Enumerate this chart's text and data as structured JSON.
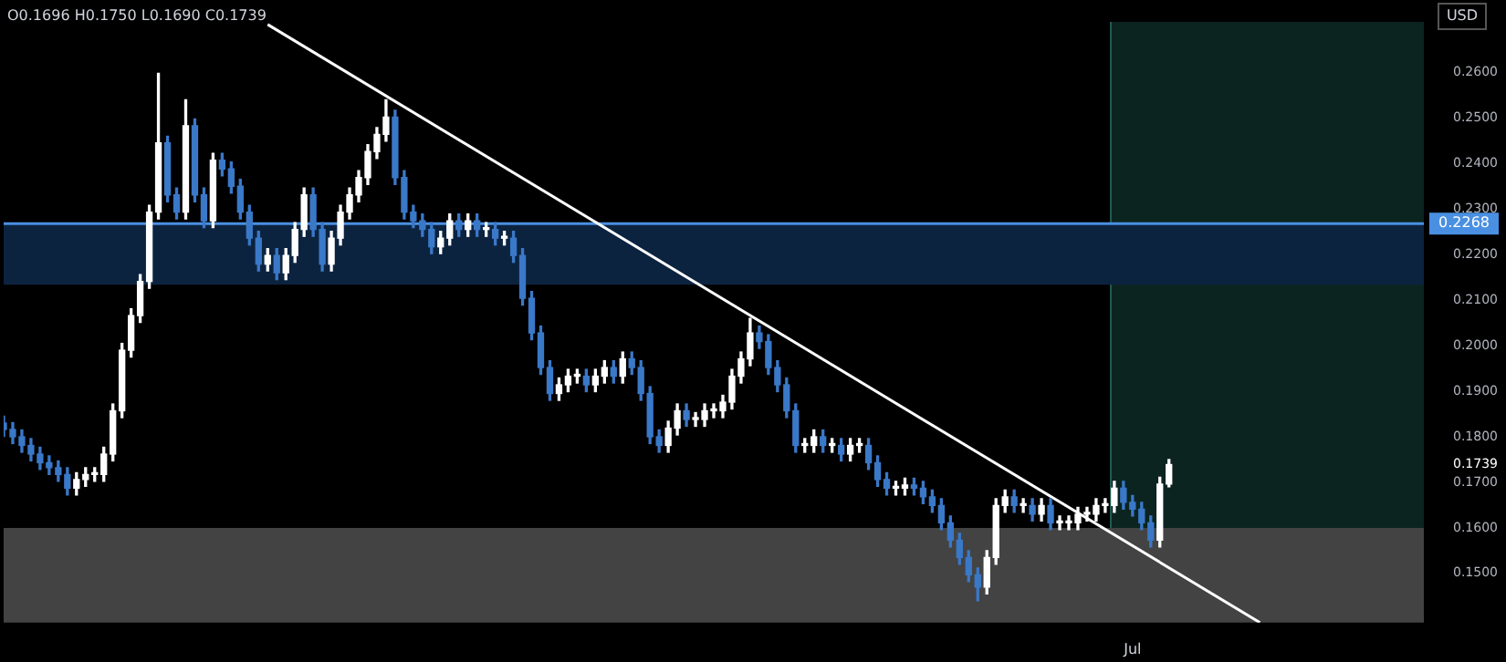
{
  "chart_data": {
    "type": "candlestick",
    "ylabel": "USD",
    "annotations": [
      "O0.1696 H0.1750 L0.1690 C0.1739"
    ],
    "categories": [
      null,
      null,
      null,
      null,
      null,
      null,
      null,
      null,
      null,
      null,
      null,
      null,
      null,
      null,
      null,
      null,
      null,
      null,
      null,
      null,
      null,
      null,
      null,
      null,
      null,
      null,
      null,
      null,
      null,
      null,
      null,
      null,
      null,
      null,
      null,
      null,
      null,
      null,
      null,
      null,
      null,
      null,
      null,
      null,
      null,
      null,
      null,
      null,
      null,
      null,
      null,
      null,
      null,
      null,
      null,
      null,
      null,
      null,
      null,
      null,
      null,
      null,
      null,
      null,
      null,
      null,
      null,
      null,
      null,
      null,
      null,
      null,
      null,
      null,
      null,
      null,
      null,
      null,
      null,
      null,
      null,
      null,
      null,
      null,
      null,
      null,
      null,
      null,
      null,
      null,
      null,
      null,
      null,
      null,
      null,
      null,
      null,
      null,
      null,
      null,
      null,
      null,
      null,
      null,
      null,
      null,
      null,
      null,
      null,
      null,
      null,
      null,
      null,
      null,
      null,
      null,
      null,
      null,
      null,
      null,
      null,
      null,
      null,
      null,
      "Jul",
      null,
      null,
      null,
      null,
      null,
      null,
      null,
      null,
      null,
      null,
      null,
      null,
      null,
      null,
      null,
      null,
      null,
      null,
      null,
      null,
      null,
      null,
      null,
      null,
      null,
      null,
      null,
      null,
      null,
      null,
      null,
      null
    ],
    "ohlc": [
      [
        0.183,
        0.1845,
        0.1801,
        0.1816
      ],
      [
        0.1816,
        0.1831,
        0.1785,
        0.18
      ],
      [
        0.18,
        0.1815,
        0.1766,
        0.1781
      ],
      [
        0.1781,
        0.1796,
        0.1747,
        0.1762
      ],
      [
        0.1762,
        0.1777,
        0.1728,
        0.1743
      ],
      [
        0.1743,
        0.1758,
        0.1717,
        0.1732
      ],
      [
        0.1732,
        0.1747,
        0.1702,
        0.1717
      ],
      [
        0.1717,
        0.1732,
        0.1672,
        0.1687
      ],
      [
        0.1687,
        0.1721,
        0.1672,
        0.1706
      ],
      [
        0.1706,
        0.1732,
        0.1691,
        0.1717
      ],
      [
        0.1717,
        0.1732,
        0.1702,
        0.1717
      ],
      [
        0.1717,
        0.1777,
        0.1702,
        0.1762
      ],
      [
        0.1762,
        0.1872,
        0.1747,
        0.1857
      ],
      [
        0.1857,
        0.2005,
        0.1842,
        0.199
      ],
      [
        0.199,
        0.2081,
        0.1975,
        0.2066
      ],
      [
        0.2066,
        0.2156,
        0.2051,
        0.2141
      ],
      [
        0.2141,
        0.2308,
        0.2126,
        0.2293
      ],
      [
        0.2293,
        0.2598,
        0.2278,
        0.2445
      ],
      [
        0.2445,
        0.246,
        0.2316,
        0.2331
      ],
      [
        0.2331,
        0.2346,
        0.2278,
        0.2293
      ],
      [
        0.2293,
        0.254,
        0.2278,
        0.2483
      ],
      [
        0.2483,
        0.2498,
        0.2316,
        0.2331
      ],
      [
        0.2331,
        0.2346,
        0.2259,
        0.2274
      ],
      [
        0.2274,
        0.2422,
        0.2259,
        0.2407
      ],
      [
        0.2407,
        0.2422,
        0.2373,
        0.2388
      ],
      [
        0.2388,
        0.2403,
        0.2335,
        0.235
      ],
      [
        0.235,
        0.2365,
        0.2278,
        0.2293
      ],
      [
        0.2293,
        0.2308,
        0.2221,
        0.2236
      ],
      [
        0.2236,
        0.2251,
        0.2164,
        0.2179
      ],
      [
        0.2179,
        0.2213,
        0.2164,
        0.2198
      ],
      [
        0.2198,
        0.2213,
        0.2145,
        0.216
      ],
      [
        0.216,
        0.2213,
        0.2145,
        0.2198
      ],
      [
        0.2198,
        0.227,
        0.2183,
        0.2255
      ],
      [
        0.2255,
        0.2346,
        0.224,
        0.2331
      ],
      [
        0.2331,
        0.2346,
        0.224,
        0.2255
      ],
      [
        0.2255,
        0.227,
        0.2164,
        0.2179
      ],
      [
        0.2179,
        0.2251,
        0.2164,
        0.2236
      ],
      [
        0.2236,
        0.2308,
        0.2221,
        0.2293
      ],
      [
        0.2293,
        0.2346,
        0.2278,
        0.2331
      ],
      [
        0.2331,
        0.2384,
        0.2316,
        0.2369
      ],
      [
        0.2369,
        0.2441,
        0.2354,
        0.2426
      ],
      [
        0.2426,
        0.2479,
        0.2411,
        0.2464
      ],
      [
        0.2464,
        0.254,
        0.2449,
        0.2502
      ],
      [
        0.2502,
        0.2517,
        0.2354,
        0.2369
      ],
      [
        0.2369,
        0.2384,
        0.2278,
        0.2293
      ],
      [
        0.2293,
        0.2308,
        0.2259,
        0.2274
      ],
      [
        0.2274,
        0.2289,
        0.224,
        0.2255
      ],
      [
        0.2255,
        0.227,
        0.2202,
        0.2217
      ],
      [
        0.2217,
        0.2251,
        0.2202,
        0.2236
      ],
      [
        0.2236,
        0.2289,
        0.2221,
        0.2274
      ],
      [
        0.2274,
        0.2289,
        0.224,
        0.2255
      ],
      [
        0.2255,
        0.2289,
        0.224,
        0.2274
      ],
      [
        0.2274,
        0.2289,
        0.224,
        0.2255
      ],
      [
        0.2255,
        0.227,
        0.224,
        0.2255
      ],
      [
        0.2255,
        0.227,
        0.2221,
        0.2236
      ],
      [
        0.2236,
        0.2251,
        0.2221,
        0.2236
      ],
      [
        0.2236,
        0.2251,
        0.2183,
        0.2198
      ],
      [
        0.2198,
        0.2213,
        0.2089,
        0.2104
      ],
      [
        0.2104,
        0.2119,
        0.2013,
        0.2028
      ],
      [
        0.2028,
        0.2043,
        0.1937,
        0.1952
      ],
      [
        0.1952,
        0.1967,
        0.188,
        0.1895
      ],
      [
        0.1895,
        0.1929,
        0.188,
        0.1914
      ],
      [
        0.1914,
        0.1948,
        0.1899,
        0.1933
      ],
      [
        0.1933,
        0.1948,
        0.1918,
        0.1933
      ],
      [
        0.1933,
        0.1948,
        0.1899,
        0.1914
      ],
      [
        0.1914,
        0.1948,
        0.1899,
        0.1933
      ],
      [
        0.1933,
        0.1967,
        0.1918,
        0.1952
      ],
      [
        0.1952,
        0.1967,
        0.1918,
        0.1933
      ],
      [
        0.1933,
        0.1986,
        0.1918,
        0.1971
      ],
      [
        0.1971,
        0.1986,
        0.1937,
        0.1952
      ],
      [
        0.1952,
        0.1967,
        0.188,
        0.1895
      ],
      [
        0.1895,
        0.191,
        0.1785,
        0.18
      ],
      [
        0.18,
        0.1815,
        0.1766,
        0.1781
      ],
      [
        0.1781,
        0.1834,
        0.1766,
        0.1819
      ],
      [
        0.1819,
        0.1872,
        0.1804,
        0.1857
      ],
      [
        0.1857,
        0.1872,
        0.1823,
        0.1838
      ],
      [
        0.1838,
        0.1853,
        0.1823,
        0.1838
      ],
      [
        0.1838,
        0.1872,
        0.1823,
        0.1857
      ],
      [
        0.1857,
        0.1872,
        0.1842,
        0.1857
      ],
      [
        0.1857,
        0.1891,
        0.1842,
        0.1876
      ],
      [
        0.1876,
        0.1948,
        0.1861,
        0.1933
      ],
      [
        0.1933,
        0.1986,
        0.1918,
        0.1971
      ],
      [
        0.1971,
        0.206,
        0.1956,
        0.2028
      ],
      [
        0.2028,
        0.2043,
        0.1994,
        0.2009
      ],
      [
        0.2009,
        0.2024,
        0.1937,
        0.1952
      ],
      [
        0.1952,
        0.1967,
        0.1899,
        0.1914
      ],
      [
        0.1914,
        0.1929,
        0.1842,
        0.1857
      ],
      [
        0.1857,
        0.1872,
        0.1766,
        0.1781
      ],
      [
        0.1781,
        0.1796,
        0.1766,
        0.1781
      ],
      [
        0.1781,
        0.1815,
        0.1766,
        0.18
      ],
      [
        0.18,
        0.1815,
        0.1766,
        0.1781
      ],
      [
        0.1781,
        0.1796,
        0.1766,
        0.1781
      ],
      [
        0.1781,
        0.1796,
        0.1747,
        0.1762
      ],
      [
        0.1762,
        0.1796,
        0.1747,
        0.1781
      ],
      [
        0.1781,
        0.1796,
        0.1766,
        0.1781
      ],
      [
        0.1781,
        0.1796,
        0.1728,
        0.1743
      ],
      [
        0.1743,
        0.1758,
        0.1691,
        0.1706
      ],
      [
        0.1706,
        0.1721,
        0.1672,
        0.1687
      ],
      [
        0.1687,
        0.1702,
        0.1672,
        0.1687
      ],
      [
        0.1687,
        0.1709,
        0.1672,
        0.1694
      ],
      [
        0.1694,
        0.1709,
        0.1672,
        0.1687
      ],
      [
        0.1687,
        0.1702,
        0.1653,
        0.1668
      ],
      [
        0.1668,
        0.1683,
        0.1634,
        0.1649
      ],
      [
        0.1649,
        0.1664,
        0.1596,
        0.1611
      ],
      [
        0.1611,
        0.1626,
        0.1558,
        0.1573
      ],
      [
        0.1573,
        0.1588,
        0.152,
        0.1535
      ],
      [
        0.1535,
        0.155,
        0.1482,
        0.1497
      ],
      [
        0.1497,
        0.1512,
        0.144,
        0.147
      ],
      [
        0.147,
        0.155,
        0.1455,
        0.1535
      ],
      [
        0.1535,
        0.1664,
        0.152,
        0.1649
      ],
      [
        0.1649,
        0.1683,
        0.1634,
        0.1668
      ],
      [
        0.1668,
        0.1683,
        0.1634,
        0.1649
      ],
      [
        0.1649,
        0.1664,
        0.1634,
        0.1649
      ],
      [
        0.1649,
        0.1664,
        0.1615,
        0.163
      ],
      [
        0.163,
        0.1664,
        0.1615,
        0.1649
      ],
      [
        0.1649,
        0.1664,
        0.1596,
        0.1611
      ],
      [
        0.1611,
        0.1626,
        0.1596,
        0.1611
      ],
      [
        0.1611,
        0.1626,
        0.1596,
        0.1611
      ],
      [
        0.1611,
        0.1645,
        0.1596,
        0.163
      ],
      [
        0.163,
        0.1645,
        0.1615,
        0.163
      ],
      [
        0.163,
        0.1664,
        0.1615,
        0.1649
      ],
      [
        0.1649,
        0.1664,
        0.1634,
        0.1649
      ],
      [
        0.1649,
        0.1702,
        0.1634,
        0.1687
      ],
      [
        0.1687,
        0.1702,
        0.1641,
        0.1656
      ],
      [
        0.1656,
        0.1671,
        0.1626,
        0.1641
      ],
      [
        0.1641,
        0.1656,
        0.1596,
        0.1611
      ],
      [
        0.1611,
        0.1626,
        0.1558,
        0.1573
      ],
      [
        0.1573,
        0.1711,
        0.1558,
        0.1696
      ],
      [
        0.1696,
        0.175,
        0.169,
        0.1739
      ],
      null,
      null,
      null,
      null,
      null,
      null,
      null,
      null,
      null,
      null,
      null,
      null,
      null,
      null,
      null,
      null,
      null,
      null,
      null,
      null,
      null,
      null,
      null,
      null,
      null,
      null,
      null,
      null
    ],
    "colors": [
      "#3a78c8",
      "#3a78c8",
      "#3a78c8",
      "#3a78c8",
      "#3a78c8",
      "#3a78c8",
      "#3a78c8",
      "#3a78c8",
      "#ffffff",
      "#ffffff",
      "#ffffff",
      "#ffffff",
      "#ffffff",
      "#ffffff",
      "#ffffff",
      "#ffffff",
      "#ffffff",
      "#ffffff",
      "#3a78c8",
      "#3a78c8",
      "#ffffff",
      "#3a78c8",
      "#3a78c8",
      "#ffffff",
      "#3a78c8",
      "#3a78c8",
      "#3a78c8",
      "#3a78c8",
      "#3a78c8",
      "#ffffff",
      "#3a78c8",
      "#ffffff",
      "#ffffff",
      "#ffffff",
      "#3a78c8",
      "#3a78c8",
      "#ffffff",
      "#ffffff",
      "#ffffff",
      "#ffffff",
      "#ffffff",
      "#ffffff",
      "#ffffff",
      "#3a78c8",
      "#3a78c8",
      "#3a78c8",
      "#3a78c8",
      "#3a78c8",
      "#ffffff",
      "#ffffff",
      "#3a78c8",
      "#ffffff",
      "#3a78c8",
      "#ffffff",
      "#3a78c8",
      "#ffffff",
      "#3a78c8",
      "#3a78c8",
      "#3a78c8",
      "#3a78c8",
      "#3a78c8",
      "#ffffff",
      "#ffffff",
      "#ffffff",
      "#3a78c8",
      "#ffffff",
      "#ffffff",
      "#3a78c8",
      "#ffffff",
      "#3a78c8",
      "#3a78c8",
      "#3a78c8",
      "#3a78c8",
      "#ffffff",
      "#ffffff",
      "#3a78c8",
      "#ffffff",
      "#ffffff",
      "#ffffff",
      "#ffffff",
      "#ffffff",
      "#ffffff",
      "#ffffff",
      "#3a78c8",
      "#3a78c8",
      "#3a78c8",
      "#3a78c8",
      "#3a78c8",
      "#ffffff",
      "#ffffff",
      "#3a78c8",
      "#ffffff",
      "#3a78c8",
      "#ffffff",
      "#ffffff",
      "#3a78c8",
      "#3a78c8",
      "#3a78c8",
      "#ffffff",
      "#ffffff",
      "#3a78c8",
      "#3a78c8",
      "#3a78c8",
      "#3a78c8",
      "#3a78c8",
      "#3a78c8",
      "#3a78c8",
      "#3a78c8",
      "#ffffff",
      "#ffffff",
      "#ffffff",
      "#3a78c8",
      "#ffffff",
      "#3a78c8",
      "#ffffff",
      "#3a78c8",
      "#ffffff",
      "#ffffff",
      "#ffffff",
      "#ffffff",
      "#ffffff",
      "#ffffff",
      "#ffffff",
      "#3a78c8",
      "#3a78c8",
      "#3a78c8",
      "#3a78c8",
      "#ffffff",
      "#ffffff",
      null,
      null,
      null,
      null,
      null,
      null,
      null,
      null,
      null,
      null,
      null,
      null,
      null,
      null,
      null,
      null,
      null,
      null,
      null,
      null,
      null,
      null,
      null,
      null,
      null,
      null,
      null,
      null
    ],
    "series": [
      {
        "type": "line",
        "color": "#ffffff",
        "values": [
          null,
          null,
          null,
          null,
          null,
          null,
          null,
          null,
          null,
          null,
          null,
          null,
          null,
          null,
          null,
          null,
          null,
          null,
          null,
          null,
          null,
          null,
          null,
          null,
          null,
          null,
          null,
          null,
          null,
          0.2705,
          null,
          null,
          null,
          null,
          null,
          null,
          null,
          null,
          null,
          null,
          null,
          null,
          null,
          null,
          null,
          null,
          null,
          null,
          null,
          null,
          null,
          null,
          null,
          null,
          null,
          null,
          null,
          null,
          null,
          null,
          null,
          null,
          null,
          null,
          null,
          null,
          null,
          null,
          null,
          null,
          null,
          null,
          null,
          null,
          null,
          null,
          null,
          null,
          null,
          null,
          null,
          null,
          null,
          null,
          null,
          null,
          null,
          null,
          null,
          null,
          null,
          null,
          null,
          null,
          null,
          null,
          null,
          null,
          null,
          null,
          null,
          null,
          null,
          null,
          null,
          null,
          null,
          null,
          null,
          null,
          null,
          null,
          null,
          null,
          null,
          null,
          null,
          null,
          null,
          null,
          null,
          null,
          null,
          null,
          null,
          null,
          null,
          null,
          null,
          null,
          null,
          null,
          null,
          null,
          null,
          null,
          null,
          null,
          0.1392,
          null,
          null,
          null,
          null,
          null,
          null,
          null,
          null,
          null,
          null,
          null,
          null,
          null,
          null,
          null,
          null,
          null,
          null
        ]
      }
    ],
    "ylim": [
      0.1392,
      0.271
    ],
    "yticks": [
      {
        "value": 0.15,
        "label": "0.1500"
      },
      {
        "value": 0.16,
        "label": "0.1600"
      },
      {
        "value": 0.17,
        "label": "0.1700"
      },
      {
        "value": 0.1739,
        "label": "0.1739"
      },
      {
        "value": 0.18,
        "label": "0.1800"
      },
      {
        "value": 0.19,
        "label": "0.1900"
      },
      {
        "value": 0.2,
        "label": "0.2000"
      },
      {
        "value": 0.21,
        "label": "0.2100"
      },
      {
        "value": 0.22,
        "label": "0.2200"
      },
      {
        "value": 0.23,
        "label": "0.2300"
      },
      {
        "value": 0.24,
        "label": "0.2400"
      },
      {
        "value": 0.25,
        "label": "0.2500"
      },
      {
        "value": 0.26,
        "label": "0.2600"
      }
    ],
    "ref_lines": [
      {
        "axis": "y",
        "value": 0.2268,
        "label": "0.2268",
        "color": "#4a90e2"
      }
    ],
    "bands": [
      {
        "axis": "y",
        "from": 0.2134,
        "to": 0.2268,
        "color": "#0c2340"
      },
      {
        "axis": "y",
        "from": 0.1392,
        "to": 0.16,
        "color": "#434343"
      }
    ],
    "grid": false,
    "legend": false
  }
}
